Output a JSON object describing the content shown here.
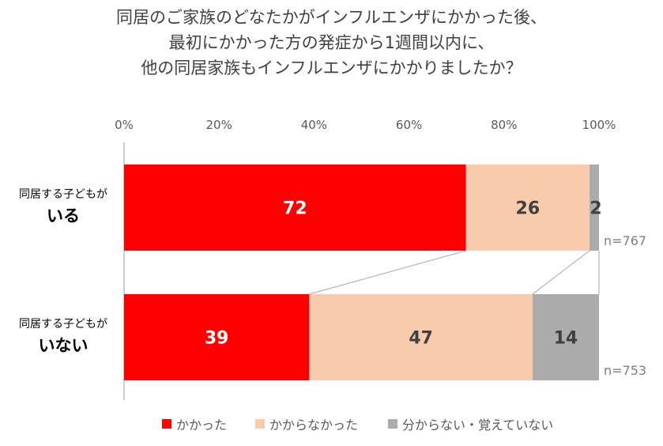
{
  "chart_data": {
    "type": "bar",
    "orientation": "horizontal",
    "stacked": true,
    "title_lines": [
      "同居のご家族のどなたかがインフルエンザにかかった後、",
      "最初にかかった方の発症から1週間以内に、",
      "他の同居家族もインフルエンザにかかりましたか？"
    ],
    "xlim": [
      0,
      100
    ],
    "x_ticks": [
      "0%",
      "20%",
      "40%",
      "60%",
      "80%",
      "100%"
    ],
    "x_tick_values": [
      0,
      20,
      40,
      60,
      80,
      100
    ],
    "grid": false,
    "legend_position": "bottom",
    "categories": [
      {
        "line1": "同居する子どもが",
        "line2": "いる",
        "n_label": "n=767"
      },
      {
        "line1": "同居する子どもが",
        "line2": "いない",
        "n_label": "n=753"
      }
    ],
    "series": [
      {
        "name": "かかった",
        "color": "#FF0000",
        "values": [
          72,
          39
        ],
        "labels": [
          "72",
          "39"
        ],
        "label_color": "#FFFFFF"
      },
      {
        "name": "かからなかった",
        "color": "#F8CBAD",
        "values": [
          26,
          47
        ],
        "labels": [
          "26",
          "47"
        ],
        "label_color": "#404040"
      },
      {
        "name": "分からない・覚えていない",
        "color": "#ABABAB",
        "values": [
          2,
          14
        ],
        "labels": [
          "2",
          "14"
        ],
        "label_color": "#404040"
      }
    ],
    "series_connector_lines": true
  }
}
